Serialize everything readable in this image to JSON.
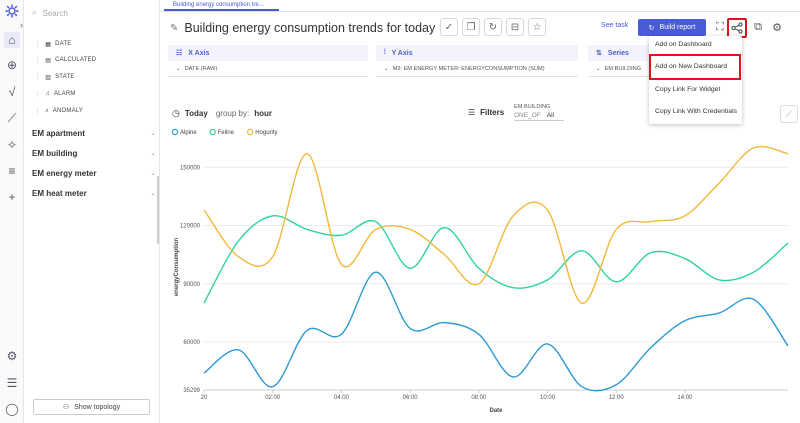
{
  "sidebar": {
    "search_placeholder": "Search",
    "fields": [
      {
        "label": "DATE",
        "icon": "calendar-icon"
      },
      {
        "label": "CALCULATED",
        "icon": "grid-icon"
      },
      {
        "label": "STATE",
        "icon": "list-icon"
      },
      {
        "label": "ALARM",
        "icon": "bell-icon"
      },
      {
        "label": "ANOMALY",
        "icon": "magnifier-icon"
      }
    ],
    "groups": [
      "EM apartment",
      "EM building",
      "EM energy meter",
      "EM heat meter"
    ],
    "show_topology": "Show topology"
  },
  "tab": {
    "label": "Building energy consumption tre..."
  },
  "header": {
    "title": "Building energy consumption trends for today",
    "see_task": "See task",
    "build_report": "Build report"
  },
  "axes": {
    "x": {
      "title": "X Axis",
      "value": "DATE (RAW)"
    },
    "y": {
      "title": "Y Axis",
      "value": "M3: EM ENERGY METER: ENERGYCONSUMPTION (SUM)"
    },
    "series": {
      "title": "Series",
      "value": "EM BUILDING"
    }
  },
  "share_menu": {
    "items": [
      "Add on Dashboard",
      "Add on New Dashboard",
      "Copy Link For Widget",
      "Copy Link With Credentials"
    ],
    "highlighted": "Add on New Dashboard"
  },
  "toolbar": {
    "today": "Today",
    "group_by_label": "group by:",
    "group_by_value": "hour",
    "filters": "Filters",
    "filter_field": "EM BUILDING",
    "filter_op": "ONE_OF",
    "filter_value": "All"
  },
  "colors": {
    "accent": "#4a5bd8",
    "highlight": "#e0121f"
  },
  "chart_data": {
    "type": "line",
    "xlabel": "Date",
    "ylabel": "energyConsumption",
    "x_ticks": [
      "20",
      "02:00",
      "04:00",
      "06:00",
      "08:00",
      "10:00",
      "12:00",
      "14:00"
    ],
    "y_ticks": [
      35299,
      60000,
      90000,
      120000,
      150000
    ],
    "ylim": [
      35299,
      162000
    ],
    "legend_position": "top-left",
    "grid": true,
    "x": [
      0,
      1,
      2,
      3,
      4,
      5,
      6,
      7,
      8,
      9,
      10,
      11,
      12,
      13,
      14,
      15,
      16,
      17
    ],
    "series": [
      {
        "name": "Alpine",
        "color": "#2b9ad6",
        "values": [
          44000,
          56000,
          37000,
          66000,
          64000,
          96000,
          67000,
          70000,
          64000,
          42000,
          59000,
          37000,
          38000,
          57000,
          71000,
          75000,
          82000,
          58000
        ]
      },
      {
        "name": "Feline",
        "color": "#2ed3a2",
        "values": [
          80000,
          112000,
          125000,
          118000,
          115000,
          122000,
          98000,
          119000,
          98000,
          88000,
          92000,
          107000,
          91000,
          106000,
          103000,
          92000,
          96000,
          111000
        ]
      },
      {
        "name": "Hogurity",
        "color": "#f2b83a",
        "values": [
          128000,
          104000,
          104000,
          157000,
          100000,
          118000,
          118000,
          105000,
          90000,
          125000,
          128000,
          80000,
          118000,
          122000,
          125000,
          142000,
          160000,
          157000
        ]
      }
    ]
  }
}
